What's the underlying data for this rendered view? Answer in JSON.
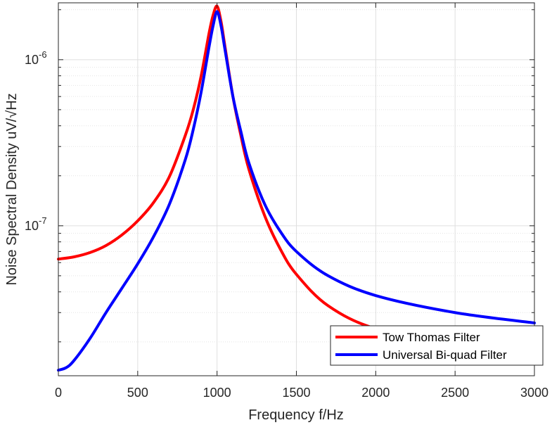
{
  "chart_data": {
    "type": "line",
    "xlabel": "Frequency f/Hz",
    "ylabel": "Noise Spectral Density uV/√Hz",
    "xlim": [
      0,
      3000
    ],
    "ylim": [
      1.25e-08,
      2.2e-06
    ],
    "y_scale": "log",
    "grid": true,
    "legend_position": "bottom-right",
    "x_ticks": [
      0,
      500,
      1000,
      1500,
      2000,
      2500,
      3000
    ],
    "x_tick_labels": [
      "0",
      "500",
      "1000",
      "1500",
      "2000",
      "2500",
      "3000"
    ],
    "y_ticks": [
      1e-07,
      1e-06
    ],
    "y_tick_labels": [
      {
        "base": "10",
        "exp": "-7"
      },
      {
        "base": "10",
        "exp": "-6"
      }
    ],
    "series": [
      {
        "name": "Tow Thomas Filter",
        "color": "#ff0000",
        "x": [
          0,
          100,
          200,
          300,
          400,
          500,
          600,
          700,
          800,
          850,
          900,
          950,
          975,
          1000,
          1025,
          1050,
          1100,
          1150,
          1200,
          1300,
          1400,
          1500,
          1700,
          2000,
          2500,
          3000
        ],
        "y": [
          6.3e-08,
          6.5e-08,
          6.9e-08,
          7.6e-08,
          8.8e-08,
          1.07e-07,
          1.38e-07,
          1.98e-07,
          3.5e-07,
          5e-07,
          8e-07,
          1.45e-06,
          1.85e-06,
          2.1e-06,
          1.7e-06,
          1.2e-06,
          6e-07,
          3.5e-07,
          2.2e-07,
          1.15e-07,
          7.2e-08,
          5.1e-08,
          3.3e-08,
          2.4e-08,
          1.95e-08,
          1.75e-08
        ]
      },
      {
        "name": "Universal Bi-quad Filter",
        "color": "#0000ff",
        "x": [
          0,
          50,
          100,
          200,
          300,
          400,
          500,
          600,
          700,
          800,
          850,
          900,
          950,
          975,
          1000,
          1025,
          1050,
          1100,
          1150,
          1200,
          1300,
          1400,
          1500,
          1700,
          2000,
          2500,
          3000
        ],
        "y": [
          1.35e-08,
          1.4e-08,
          1.55e-08,
          2.1e-08,
          3e-08,
          4.2e-08,
          5.9e-08,
          8.6e-08,
          1.35e-07,
          2.5e-07,
          3.8e-07,
          6.4e-07,
          1.2e-06,
          1.6e-06,
          1.95e-06,
          1.6e-06,
          1.15e-06,
          6e-07,
          3.7e-07,
          2.4e-07,
          1.35e-07,
          9.2e-08,
          7e-08,
          5e-08,
          3.8e-08,
          3e-08,
          2.6e-08
        ]
      }
    ]
  }
}
